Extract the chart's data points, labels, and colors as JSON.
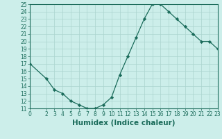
{
  "x": [
    0,
    2,
    3,
    4,
    5,
    6,
    7,
    8,
    9,
    10,
    11,
    12,
    13,
    14,
    15,
    16,
    17,
    18,
    19,
    20,
    21,
    22,
    23
  ],
  "y": [
    17,
    15,
    13.5,
    13,
    12,
    11.5,
    11,
    11,
    11.5,
    12.5,
    15.5,
    18,
    20.5,
    23,
    25,
    25,
    24,
    23,
    22,
    21,
    20,
    20,
    19
  ],
  "xlim": [
    0,
    23
  ],
  "ylim": [
    11,
    25
  ],
  "xticks": [
    0,
    2,
    3,
    4,
    5,
    6,
    7,
    8,
    9,
    10,
    11,
    12,
    13,
    14,
    15,
    16,
    17,
    18,
    19,
    20,
    21,
    22,
    23
  ],
  "yticks": [
    11,
    12,
    13,
    14,
    15,
    16,
    17,
    18,
    19,
    20,
    21,
    22,
    23,
    24,
    25
  ],
  "xlabel": "Humidex (Indice chaleur)",
  "line_color": "#1a6b5a",
  "marker": "D",
  "marker_size": 2.2,
  "bg_color": "#cceeea",
  "grid_color": "#aad4ce",
  "tick_label_fontsize": 5.5,
  "xlabel_fontsize": 7.5,
  "title": ""
}
